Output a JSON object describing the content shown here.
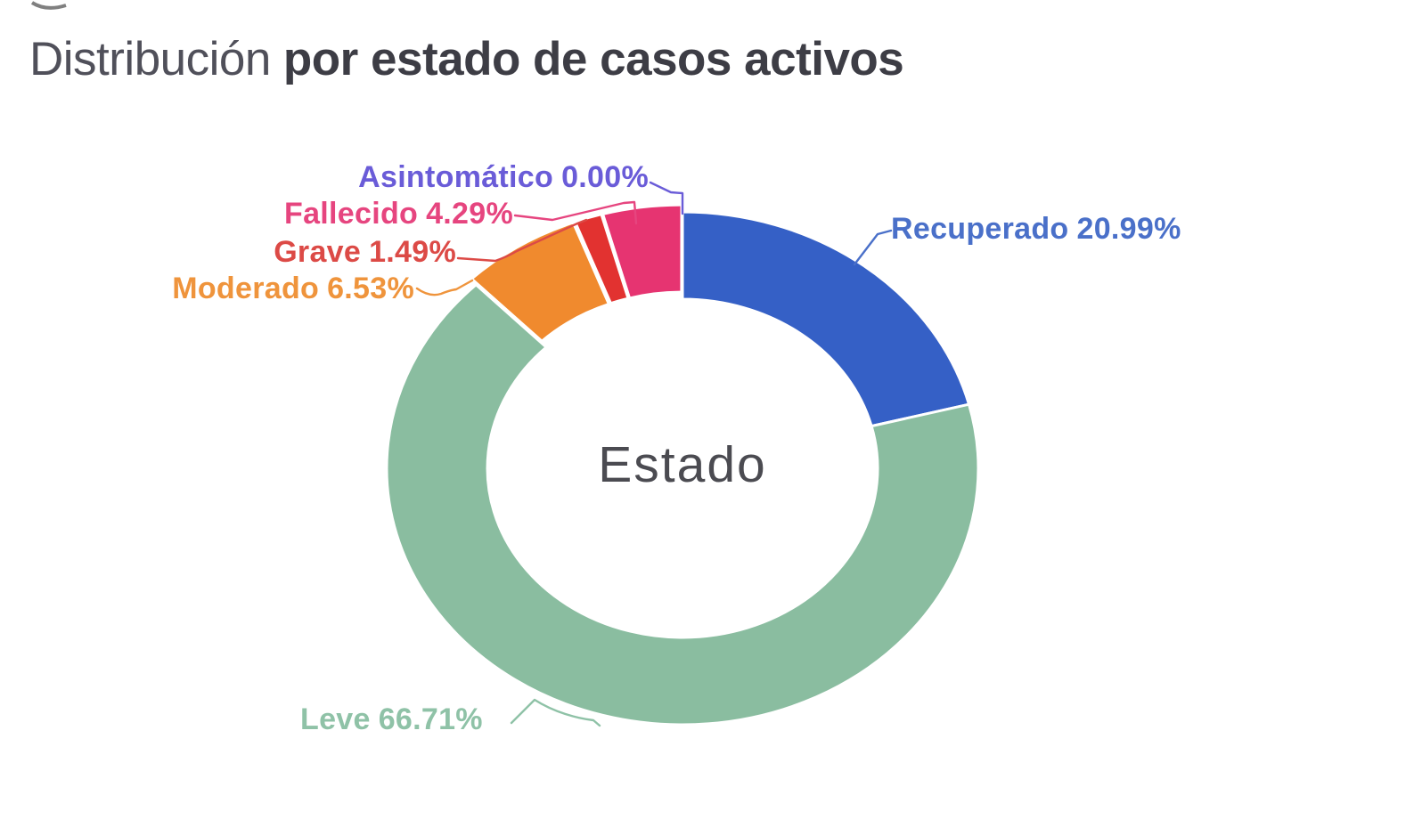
{
  "title": {
    "regular": "Distribución",
    "bold": "por estado de casos activos"
  },
  "chart_data": {
    "type": "pie",
    "variant": "donut",
    "center_label": "Estado",
    "unit": "%",
    "direction": "clockwise",
    "start_angle": "12-oclock",
    "segments": [
      {
        "key": "recuperado",
        "name": "Recuperado",
        "value": 20.99,
        "percent_label": "20.99%",
        "color": "#3560c6",
        "label_color": "#4a70c9",
        "pulled": false
      },
      {
        "key": "leve",
        "name": "Leve",
        "value": 66.71,
        "percent_label": "66.71%",
        "color": "#8abda0",
        "label_color": "#8fc2a7",
        "pulled": false
      },
      {
        "key": "moderado",
        "name": "Moderado",
        "value": 6.53,
        "percent_label": "6.53%",
        "color": "#f08a2e",
        "label_color": "#ef943c",
        "pulled": true
      },
      {
        "key": "grave",
        "name": "Grave",
        "value": 1.49,
        "percent_label": "1.49%",
        "color": "#e23230",
        "label_color": "#dc4a46",
        "pulled": true
      },
      {
        "key": "fallecido",
        "name": "Fallecido",
        "value": 4.29,
        "percent_label": "4.29%",
        "color": "#e63471",
        "label_color": "#e6457f",
        "pulled": true
      },
      {
        "key": "asintomatico",
        "name": "Asintomático",
        "value": 0.0,
        "percent_label": "0.00%",
        "color": "#6b5cd8",
        "label_color": "#6a5cd8",
        "pulled": false
      }
    ]
  }
}
